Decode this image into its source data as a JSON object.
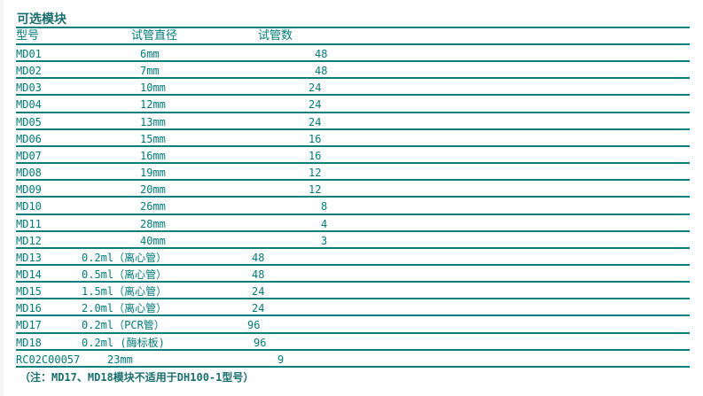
{
  "title": "可选模块",
  "headers": {
    "model": "型号",
    "diameter": "试管直径",
    "count": "试管数"
  },
  "rows": [
    {
      "model": "MD01",
      "diameter": "6mm",
      "count": "48"
    },
    {
      "model": "MD02",
      "diameter": "7mm",
      "count": "48"
    },
    {
      "model": "MD03",
      "diameter": "10mm",
      "count": "24"
    },
    {
      "model": "MD04",
      "diameter": "12mm",
      "count": "24"
    },
    {
      "model": "MD05",
      "diameter": "13mm",
      "count": "24"
    },
    {
      "model": "MD06",
      "diameter": "15mm",
      "count": "16"
    },
    {
      "model": "MD07",
      "diameter": "16mm",
      "count": "16"
    },
    {
      "model": "MD08",
      "diameter": "19mm",
      "count": "12"
    },
    {
      "model": "MD09",
      "diameter": "20mm",
      "count": "12"
    },
    {
      "model": "MD10",
      "diameter": "26mm",
      "count": "8"
    },
    {
      "model": "MD11",
      "diameter": "28mm",
      "count": "4"
    },
    {
      "model": "MD12",
      "diameter": "40mm",
      "count": "3"
    },
    {
      "model": "MD13",
      "diameter": "0.2ml（离心管）",
      "count": "48"
    },
    {
      "model": "MD14",
      "diameter": "0.5ml（离心管）",
      "count": "48"
    },
    {
      "model": "MD15",
      "diameter": "1.5ml（离心管）",
      "count": "24"
    },
    {
      "model": "MD16",
      "diameter": "2.0ml（离心管）",
      "count": "24"
    },
    {
      "model": "MD17",
      "diameter": "0.2ml（PCR管）",
      "count": "96"
    },
    {
      "model": "MD18",
      "diameter": "0.2ml (酶标板)",
      "count": "96"
    },
    {
      "model": "RC02C00057",
      "diameter": "23mm",
      "count": "9"
    }
  ],
  "note": "（注：MD17、MD18模块不适用于DH100-1型号）",
  "colors": {
    "accent": "#0a7f7b",
    "text": "#007a78"
  }
}
